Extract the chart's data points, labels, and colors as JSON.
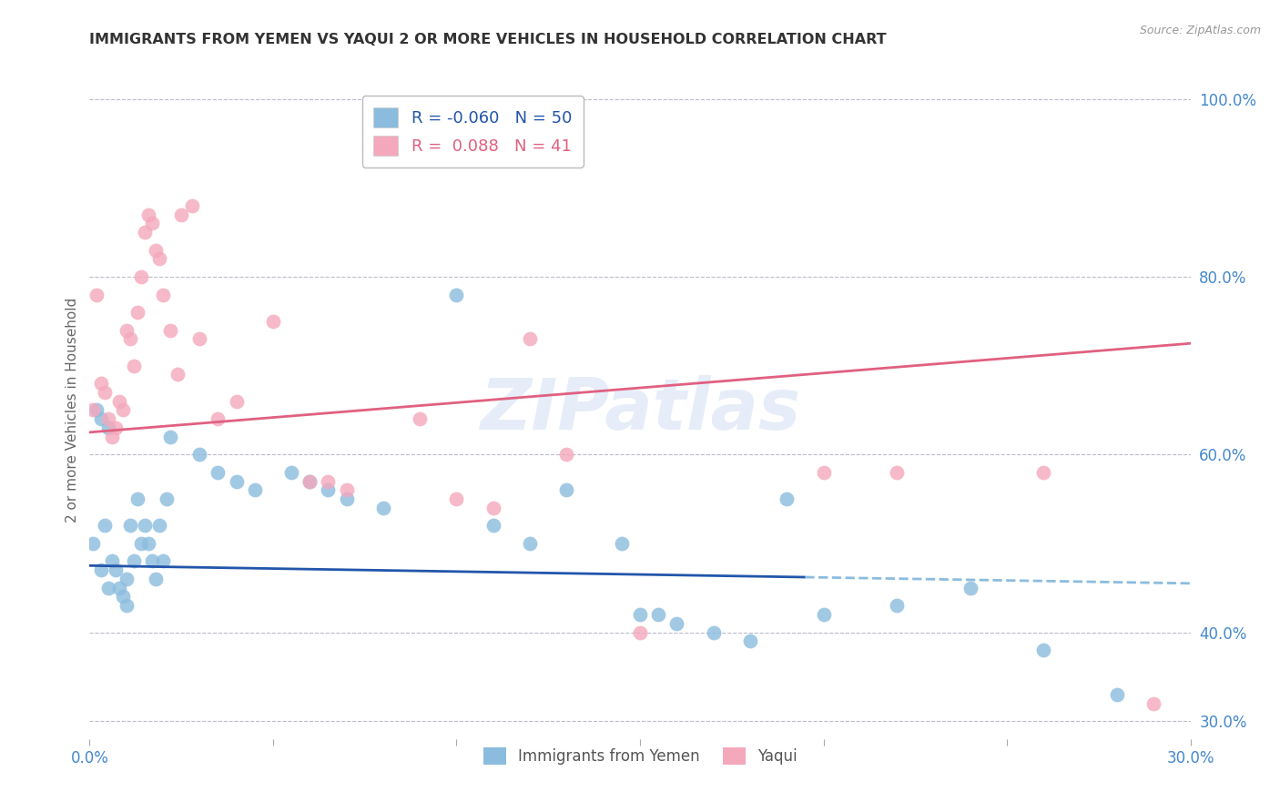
{
  "title": "IMMIGRANTS FROM YEMEN VS YAQUI 2 OR MORE VEHICLES IN HOUSEHOLD CORRELATION CHART",
  "source": "Source: ZipAtlas.com",
  "ylabel": "2 or more Vehicles in Household",
  "legend_label1": "Immigrants from Yemen",
  "legend_label2": "Yaqui",
  "R1": -0.06,
  "N1": 50,
  "R2": 0.088,
  "N2": 41,
  "color1": "#8bbcde",
  "color2": "#f4a8bc",
  "line_color1": "#2255aa",
  "line_color2": "#e06080",
  "watermark": "ZIPatlas",
  "xlim": [
    0.0,
    0.3
  ],
  "ylim": [
    0.28,
    1.02
  ],
  "xticks": [
    0.0,
    0.05,
    0.1,
    0.15,
    0.2,
    0.25,
    0.3
  ],
  "xtick_labels": [
    "0.0%",
    "",
    "",
    "",
    "",
    "",
    "30.0%"
  ],
  "yticks_right": [
    0.3,
    0.4,
    0.6,
    0.8,
    1.0
  ],
  "ytick_labels_right": [
    "30.0%",
    "40.0%",
    "60.0%",
    "80.0%",
    "100.0%"
  ],
  "blue_x": [
    0.001,
    0.002,
    0.003,
    0.003,
    0.004,
    0.005,
    0.005,
    0.006,
    0.007,
    0.008,
    0.009,
    0.01,
    0.01,
    0.011,
    0.012,
    0.013,
    0.014,
    0.015,
    0.016,
    0.017,
    0.018,
    0.019,
    0.02,
    0.021,
    0.022,
    0.03,
    0.035,
    0.04,
    0.045,
    0.055,
    0.06,
    0.065,
    0.07,
    0.08,
    0.1,
    0.11,
    0.12,
    0.13,
    0.145,
    0.15,
    0.155,
    0.16,
    0.17,
    0.18,
    0.19,
    0.2,
    0.22,
    0.24,
    0.26,
    0.28
  ],
  "blue_y": [
    0.5,
    0.65,
    0.47,
    0.64,
    0.52,
    0.63,
    0.45,
    0.48,
    0.47,
    0.45,
    0.44,
    0.46,
    0.43,
    0.52,
    0.48,
    0.55,
    0.5,
    0.52,
    0.5,
    0.48,
    0.46,
    0.52,
    0.48,
    0.55,
    0.62,
    0.6,
    0.58,
    0.57,
    0.56,
    0.58,
    0.57,
    0.56,
    0.55,
    0.54,
    0.78,
    0.52,
    0.5,
    0.56,
    0.5,
    0.42,
    0.42,
    0.41,
    0.4,
    0.39,
    0.55,
    0.42,
    0.43,
    0.45,
    0.38,
    0.33
  ],
  "pink_x": [
    0.001,
    0.002,
    0.003,
    0.004,
    0.005,
    0.006,
    0.007,
    0.008,
    0.009,
    0.01,
    0.011,
    0.012,
    0.013,
    0.014,
    0.015,
    0.016,
    0.017,
    0.018,
    0.019,
    0.02,
    0.022,
    0.024,
    0.025,
    0.028,
    0.03,
    0.035,
    0.04,
    0.05,
    0.06,
    0.065,
    0.07,
    0.09,
    0.1,
    0.11,
    0.12,
    0.13,
    0.15,
    0.2,
    0.22,
    0.26,
    0.29
  ],
  "pink_y": [
    0.65,
    0.78,
    0.68,
    0.67,
    0.64,
    0.62,
    0.63,
    0.66,
    0.65,
    0.74,
    0.73,
    0.7,
    0.76,
    0.8,
    0.85,
    0.87,
    0.86,
    0.83,
    0.82,
    0.78,
    0.74,
    0.69,
    0.87,
    0.88,
    0.73,
    0.64,
    0.66,
    0.75,
    0.57,
    0.57,
    0.56,
    0.64,
    0.55,
    0.54,
    0.73,
    0.6,
    0.4,
    0.58,
    0.58,
    0.58,
    0.32
  ],
  "blue_line_x0": 0.0,
  "blue_line_y0": 0.475,
  "blue_line_x1": 0.3,
  "blue_line_y1": 0.455,
  "blue_line_solid_end": 0.195,
  "pink_line_x0": 0.0,
  "pink_line_y0": 0.625,
  "pink_line_x1": 0.3,
  "pink_line_y1": 0.725,
  "background_color": "#ffffff",
  "grid_color": "#bbbbcc"
}
